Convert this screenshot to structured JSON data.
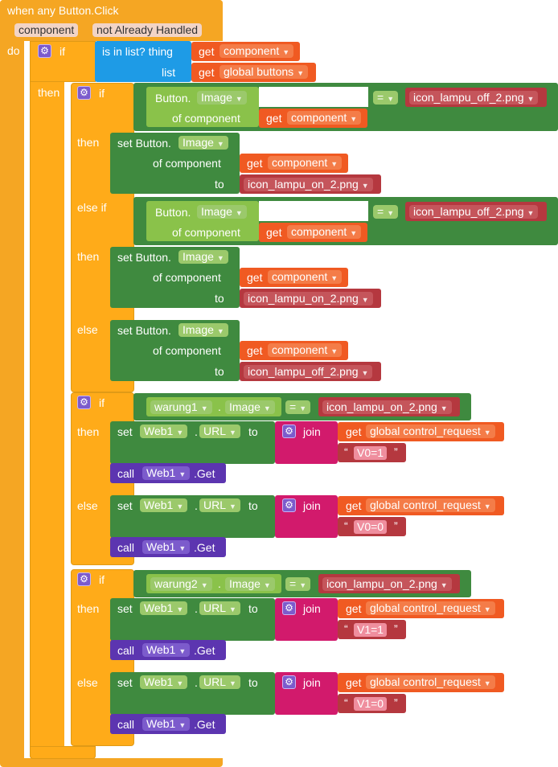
{
  "event": {
    "title": "when any Button.Click",
    "param1": "component",
    "param2": "not Already Handled",
    "do": "do"
  },
  "kw": {
    "if": "if",
    "then": "then",
    "else": "else",
    "else_if": "else if",
    "is_in_list": "is in list? thing",
    "list": "list",
    "get": "get",
    "of_component": "of component",
    "to": "to",
    "set": "set",
    "call": "call",
    "join": "join",
    "eq": "=",
    "dot": ".",
    "get_method": ".Get",
    "set_button": "set Button.",
    "button": "Button."
  },
  "vars": {
    "component": "component",
    "global_buttons": "global buttons",
    "global_control_request": "global control_request"
  },
  "props": {
    "image": "Image",
    "url": "URL"
  },
  "components": {
    "warung1": "warung1",
    "warung2": "warung2",
    "web1": "Web1"
  },
  "files": {
    "off": "icon_lampu_off_2.png",
    "on": "icon_lampu_on_2.png"
  },
  "strings": {
    "v0_1": "V0=1",
    "v0_0": "V0=0",
    "v1_1": "V1=1",
    "v1_0": "V1=0"
  },
  "icons": {
    "gear": "gear-icon",
    "dropdown": "chevron-down-icon"
  },
  "colors": {
    "event": "#f5a623",
    "control": "#ffab19",
    "list": "#1e9be6",
    "component_getter": "#8ac24a",
    "component_setter": "#3f8a3f",
    "variable": "#f05a22",
    "text": "#b5383f",
    "join": "#d21a6c",
    "call": "#5c35b0"
  }
}
